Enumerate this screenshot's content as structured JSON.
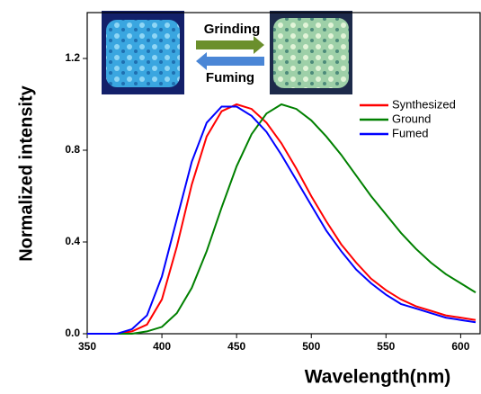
{
  "chart_data": {
    "type": "line",
    "xlabel": "Wavelength(nm)",
    "ylabel": "Normalized intensity",
    "annotations": [
      "Grinding",
      "Fuming"
    ],
    "x": [
      350,
      360,
      370,
      380,
      390,
      400,
      410,
      420,
      430,
      440,
      450,
      460,
      470,
      480,
      490,
      500,
      510,
      520,
      530,
      540,
      550,
      560,
      570,
      580,
      590,
      600,
      610
    ],
    "series": [
      {
        "name": "Synthesized",
        "color": "#ff0000",
        "values": [
          0,
          0,
          0,
          0.01,
          0.04,
          0.15,
          0.38,
          0.65,
          0.86,
          0.97,
          1.0,
          0.98,
          0.92,
          0.83,
          0.72,
          0.6,
          0.49,
          0.39,
          0.31,
          0.24,
          0.19,
          0.15,
          0.12,
          0.1,
          0.08,
          0.07,
          0.06
        ]
      },
      {
        "name": "Ground",
        "color": "#008000",
        "values": [
          0,
          0,
          0,
          0,
          0.01,
          0.03,
          0.09,
          0.2,
          0.36,
          0.55,
          0.73,
          0.87,
          0.96,
          1.0,
          0.98,
          0.93,
          0.86,
          0.78,
          0.69,
          0.6,
          0.52,
          0.44,
          0.37,
          0.31,
          0.26,
          0.22,
          0.18
        ]
      },
      {
        "name": "Fumed",
        "color": "#0000ff",
        "values": [
          0,
          0,
          0,
          0.02,
          0.08,
          0.25,
          0.5,
          0.75,
          0.92,
          0.99,
          0.99,
          0.95,
          0.88,
          0.78,
          0.67,
          0.56,
          0.45,
          0.36,
          0.28,
          0.22,
          0.17,
          0.13,
          0.11,
          0.09,
          0.07,
          0.06,
          0.05
        ]
      }
    ],
    "xlim": [
      350,
      613
    ],
    "xticks": [
      350,
      400,
      450,
      500,
      550,
      600
    ],
    "ylim": [
      0,
      1.4
    ],
    "yticks": [
      {
        "value": 0,
        "label": "0.0"
      },
      0.4,
      0.8,
      1.2
    ]
  }
}
